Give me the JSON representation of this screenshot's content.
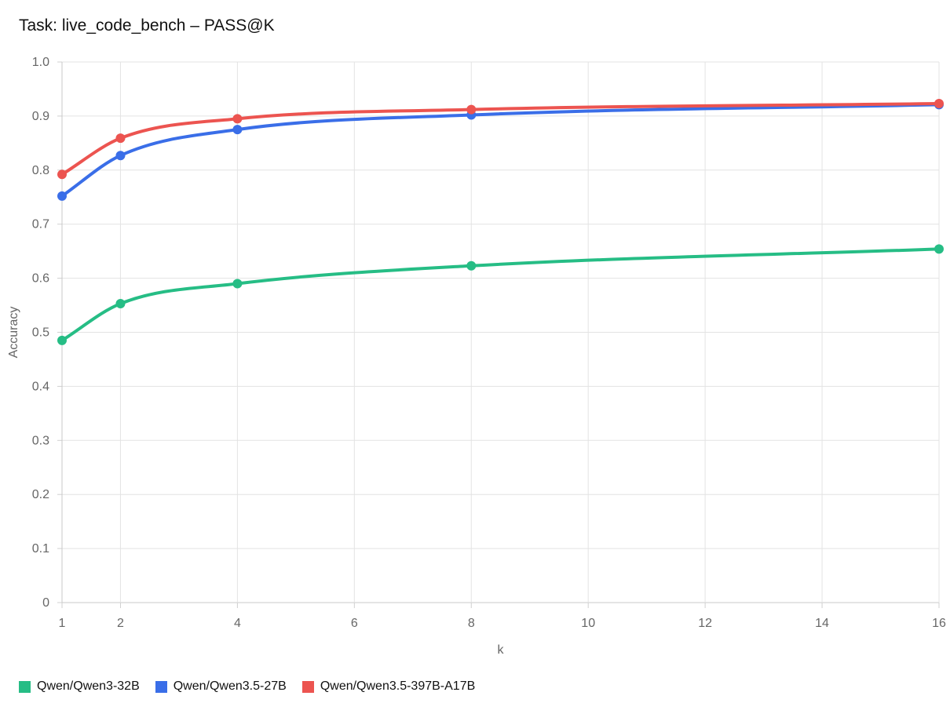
{
  "chart_data": {
    "type": "line",
    "title": "Task: live_code_bench – PASS@K",
    "xlabel": "k",
    "ylabel": "Accuracy",
    "xlim": [
      1,
      16
    ],
    "ylim": [
      0,
      1
    ],
    "x_ticks": [
      1,
      2,
      4,
      6,
      8,
      10,
      12,
      14,
      16
    ],
    "y_ticks": [
      0,
      0.1,
      0.2,
      0.3,
      0.4,
      0.5,
      0.6,
      0.7,
      0.8,
      0.9,
      1.0
    ],
    "y_tick_labels": [
      "0",
      "0.1",
      "0.2",
      "0.3",
      "0.4",
      "0.5",
      "0.6",
      "0.7",
      "0.8",
      "0.9",
      "1.0"
    ],
    "x": [
      1,
      2,
      4,
      8,
      16
    ],
    "grid": true,
    "legend_position": "bottom-left",
    "series": [
      {
        "name": "Qwen/Qwen3-32B",
        "color": "#26bd85",
        "values": [
          0.485,
          0.553,
          0.59,
          0.623,
          0.654
        ]
      },
      {
        "name": "Qwen/Qwen3.5-27B",
        "color": "#3a6ee8",
        "values": [
          0.752,
          0.827,
          0.875,
          0.902,
          0.921
        ]
      },
      {
        "name": "Qwen/Qwen3.5-397B-A17B",
        "color": "#ec5450",
        "values": [
          0.792,
          0.859,
          0.895,
          0.912,
          0.923
        ]
      }
    ]
  }
}
